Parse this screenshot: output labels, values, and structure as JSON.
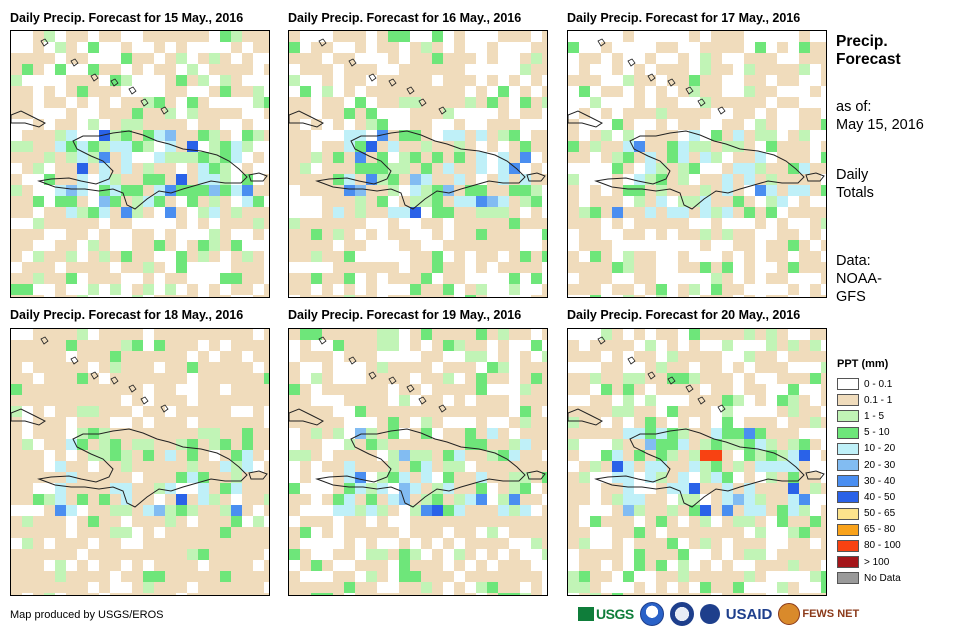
{
  "panels": [
    {
      "title": "Daily Precip. Forecast for 15 May., 2016",
      "day": 15
    },
    {
      "title": "Daily Precip. Forecast for 16 May., 2016",
      "day": 16
    },
    {
      "title": "Daily Precip. Forecast for 17 May., 2016",
      "day": 17
    },
    {
      "title": "Daily Precip. Forecast for 18 May., 2016",
      "day": 18
    },
    {
      "title": "Daily Precip. Forecast for 19 May., 2016",
      "day": 19
    },
    {
      "title": "Daily Precip. Forecast for 20 May., 2016",
      "day": 20
    }
  ],
  "sidebar": {
    "heading_line1": "Precip.",
    "heading_line2": "Forecast",
    "asof_label": "as of:",
    "asof_date": "May 15, 2016",
    "type_line1": "Daily",
    "type_line2": "Totals",
    "data_label": "Data:",
    "data_source_line1": "NOAA-",
    "data_source_line2": "GFS"
  },
  "legend": {
    "title": "PPT (mm)",
    "items": [
      {
        "label": "0 - 0.1",
        "color": "#ffffff"
      },
      {
        "label": "0.1 - 1",
        "color": "#f0dcbc"
      },
      {
        "label": "1 - 5",
        "color": "#c1f4b6"
      },
      {
        "label": "5 - 10",
        "color": "#6ee67a"
      },
      {
        "label": "10 - 20",
        "color": "#bff0f8"
      },
      {
        "label": "20 - 30",
        "color": "#82bcf2"
      },
      {
        "label": "30 - 40",
        "color": "#4a8ef0"
      },
      {
        "label": "40 - 50",
        "color": "#2a62e8"
      },
      {
        "label": "50 - 65",
        "color": "#fce38c"
      },
      {
        "label": "65 - 80",
        "color": "#f9a21a"
      },
      {
        "label": "80 - 100",
        "color": "#f84212"
      },
      {
        "label": "> 100",
        "color": "#a4161a"
      },
      {
        "label": "No Data",
        "color": "#9a9a9a"
      }
    ]
  },
  "footer": {
    "credit": "Map produced by USGS/EROS"
  },
  "logos": {
    "usgs": "USGS",
    "usaid": "USAID",
    "fews": "FEWS NET"
  }
}
